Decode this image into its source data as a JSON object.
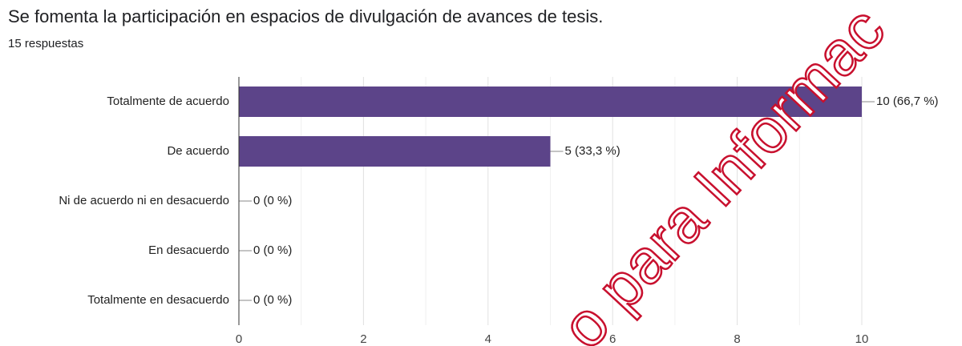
{
  "chart_data": {
    "type": "bar",
    "orientation": "horizontal",
    "title": "Se fomenta la participación en espacios de divulgación de avances de tesis.",
    "subtitle": "15 respuestas",
    "categories": [
      "Totalmente de acuerdo",
      "De acuerdo",
      "Ni de acuerdo ni en desacuerdo",
      "En desacuerdo",
      "Totalmente en desacuerdo"
    ],
    "values": [
      10,
      5,
      0,
      0,
      0
    ],
    "value_labels": [
      "10 (66,7 %)",
      "5 (33,3 %)",
      "0 (0 %)",
      "0 (0 %)",
      "0 (0 %)"
    ],
    "color": "#5c4489",
    "xlim": [
      0,
      10
    ],
    "xticks": [
      0,
      2,
      4,
      6,
      8,
      10
    ],
    "x_minor_ticks": [
      1,
      3,
      5,
      7,
      9
    ],
    "grid": true,
    "watermark": "o para Informac"
  }
}
